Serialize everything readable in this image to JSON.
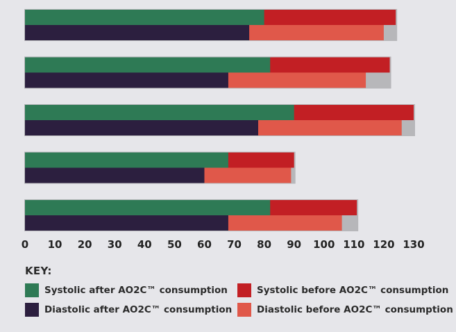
{
  "chart_data": {
    "type": "bar",
    "orientation": "horizontal",
    "stacked_overlay": true,
    "title": "",
    "xlabel": "",
    "ylabel": "",
    "xlim": [
      0,
      130
    ],
    "xticks": [
      0,
      10,
      20,
      30,
      40,
      50,
      60,
      70,
      80,
      90,
      100,
      110,
      120,
      130
    ],
    "grid": false,
    "legend_title": "KEY:",
    "legend_position": "bottom",
    "groups": [
      {
        "systolic_after": 80,
        "systolic_before": 124,
        "diastolic_after": 75,
        "diastolic_before": 120
      },
      {
        "systolic_after": 82,
        "systolic_before": 122,
        "diastolic_after": 68,
        "diastolic_before": 114
      },
      {
        "systolic_after": 90,
        "systolic_before": 130,
        "diastolic_after": 78,
        "diastolic_before": 126
      },
      {
        "systolic_after": 68,
        "systolic_before": 90,
        "diastolic_after": 60,
        "diastolic_before": 89
      },
      {
        "systolic_after": 82,
        "systolic_before": 111,
        "diastolic_after": 68,
        "diastolic_before": 106
      }
    ],
    "series": [
      {
        "key": "systolic_after",
        "name": "Systolic after AO2C™ consumption",
        "color": "#2e7a55"
      },
      {
        "key": "diastolic_after",
        "name": "Diastolic after AO2C™ consumption",
        "color": "#2c1f3f"
      },
      {
        "key": "systolic_before",
        "name": "Systolic before AO2C™ consumption",
        "color": "#c21f24"
      },
      {
        "key": "diastolic_before",
        "name": "Diastolic before AO2C™ consumption",
        "color": "#e0584a"
      }
    ]
  }
}
